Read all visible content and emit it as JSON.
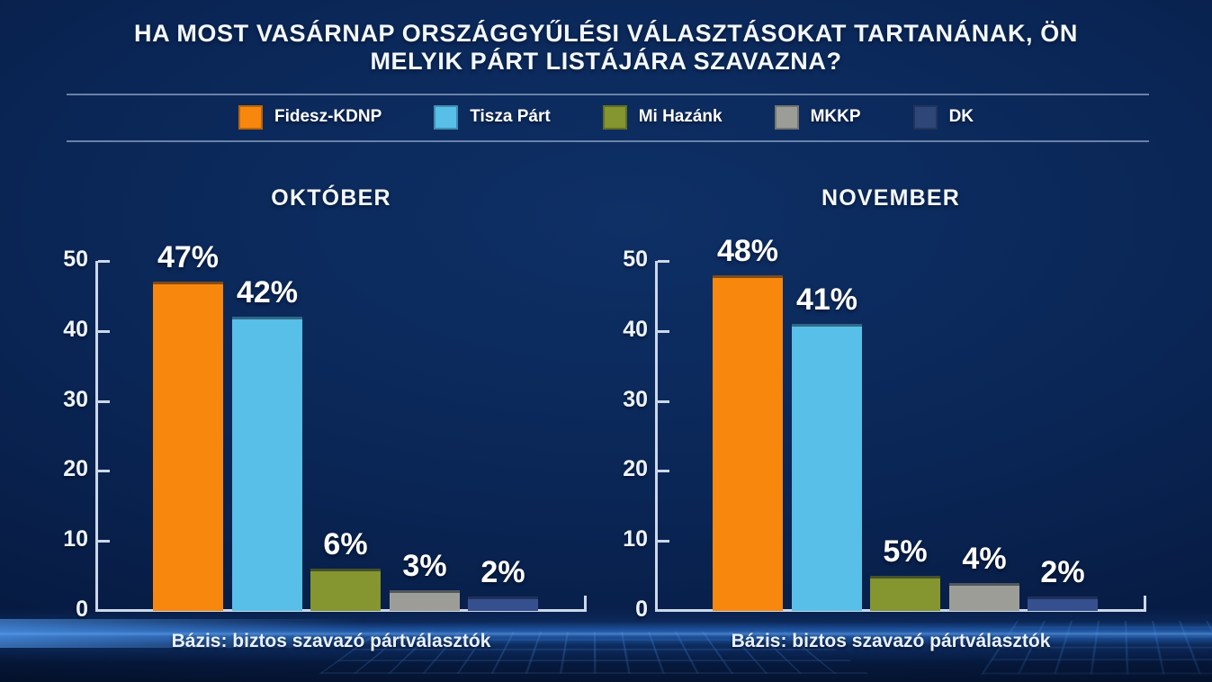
{
  "title": {
    "line1": "HA MOST VASÁRNAP ORSZÁGGYŰLÉSI VÁLASZTÁSOKAT TARTANÁNAK, ÖN",
    "line2": "MELYIK PÁRT LISTÁJÁRA SZAVAZNA?"
  },
  "legend": {
    "items": [
      {
        "label": "Fidesz-KDNP",
        "color": "#F8870D"
      },
      {
        "label": "Tisza Párt",
        "color": "#58BFE8"
      },
      {
        "label": "Mi Hazánk",
        "color": "#85952F"
      },
      {
        "label": "MKKP",
        "color": "#9D9D98"
      },
      {
        "label": "DK",
        "color": "#2E4778"
      }
    ]
  },
  "chart_data": [
    {
      "type": "bar",
      "title": "OKTÓBER",
      "categories": [
        "Fidesz-KDNP",
        "Tisza Párt",
        "Mi Hazánk",
        "MKKP",
        "DK"
      ],
      "values": [
        47,
        42,
        6,
        3,
        2
      ],
      "labels": [
        "47%",
        "42%",
        "6%",
        "3%",
        "2%"
      ],
      "colors": [
        "#F8870D",
        "#58BFE8",
        "#85952F",
        "#9D9D98",
        "#36508F"
      ],
      "ylim": [
        0,
        50
      ],
      "yticks": [
        0,
        10,
        20,
        30,
        40,
        50
      ],
      "grid": false,
      "note": "Bázis: biztos szavazó pártválasztók"
    },
    {
      "type": "bar",
      "title": "NOVEMBER",
      "categories": [
        "Fidesz-KDNP",
        "Tisza Párt",
        "Mi Hazánk",
        "MKKP",
        "DK"
      ],
      "values": [
        48,
        41,
        5,
        4,
        2
      ],
      "labels": [
        "48%",
        "41%",
        "5%",
        "4%",
        "2%"
      ],
      "colors": [
        "#F8870D",
        "#58BFE8",
        "#85952F",
        "#9D9D98",
        "#36508F"
      ],
      "ylim": [
        0,
        50
      ],
      "yticks": [
        0,
        10,
        20,
        30,
        40,
        50
      ],
      "grid": false,
      "note": "Bázis: biztos szavazó pártválasztók"
    }
  ]
}
